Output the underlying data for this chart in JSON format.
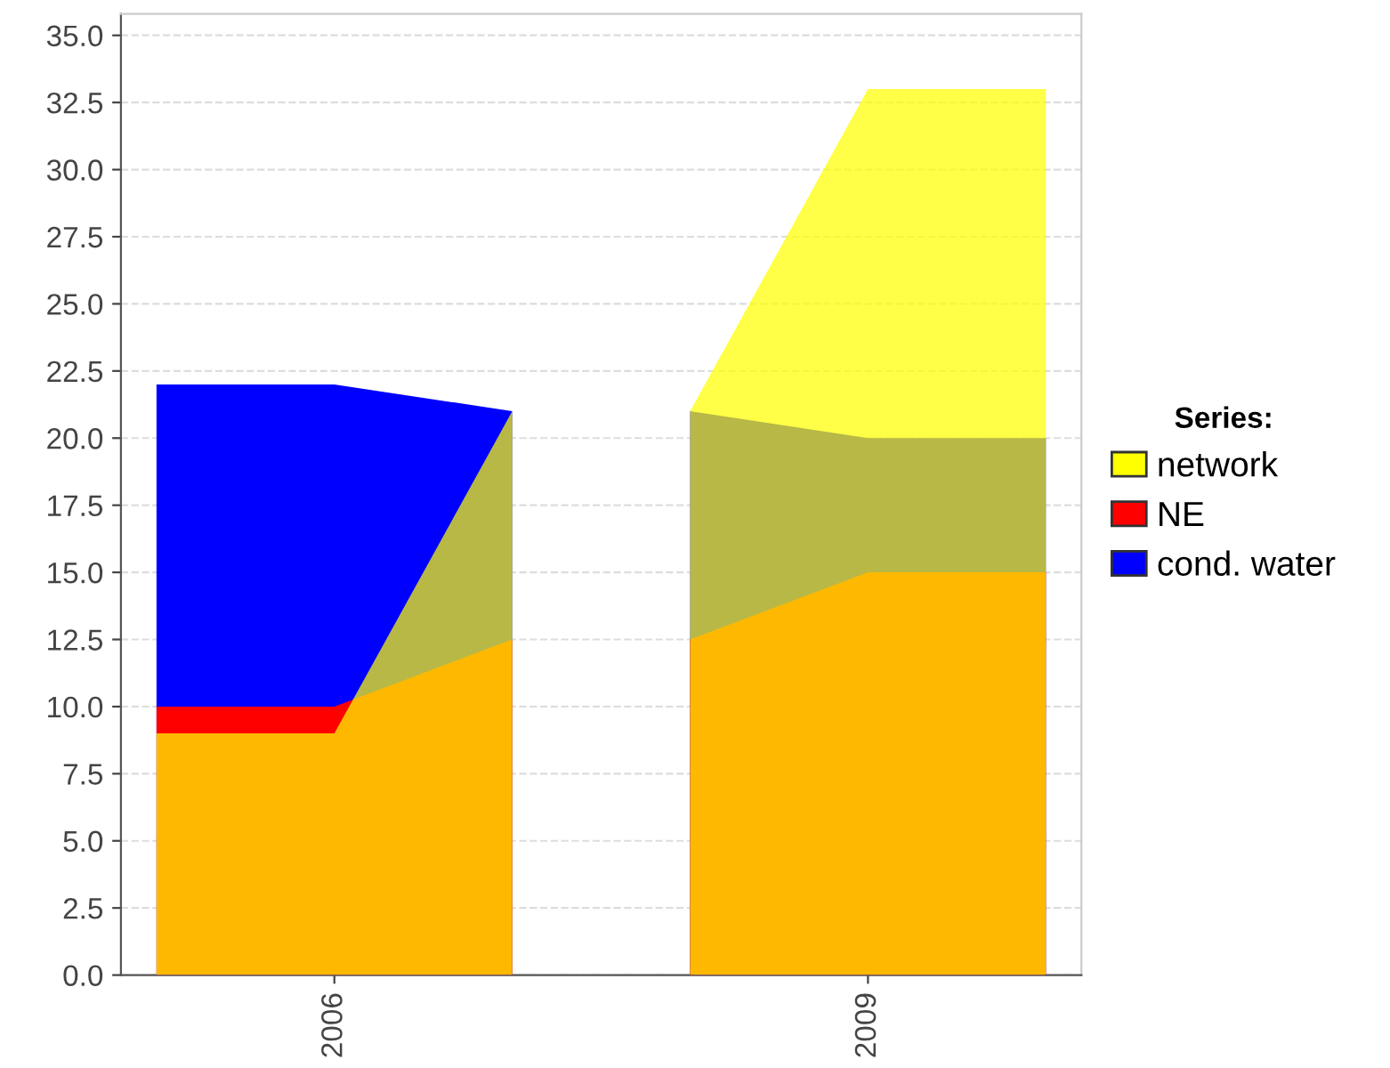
{
  "chart_data": {
    "type": "area",
    "x": [
      2005,
      2006,
      2007,
      2007.5,
      2008,
      2009,
      2010
    ],
    "series": [
      {
        "name": "network",
        "color": "#ffff00",
        "values": [
          9,
          9,
          21,
          null,
          21,
          33,
          33
        ]
      },
      {
        "name": "NE",
        "color": "#ff0000",
        "values": [
          10,
          10,
          12.5,
          null,
          12.5,
          15,
          15
        ]
      },
      {
        "name": "cond. water",
        "color": "#0000ff",
        "values": [
          22,
          22,
          21,
          null,
          21,
          20,
          20
        ]
      }
    ],
    "legend_title": "Series:",
    "legend": "right",
    "grid": "y",
    "xlim": [
      2004.8,
      2010.2
    ],
    "xticks": [
      2006,
      2009
    ],
    "ylim": [
      0,
      35.8
    ],
    "yticks": [
      {
        "value": 0,
        "label": "0.0"
      },
      {
        "value": 2.5,
        "label": "2.5"
      },
      {
        "value": 5,
        "label": "5.0"
      },
      {
        "value": 7.5,
        "label": "7.5"
      },
      {
        "value": 10,
        "label": "10.0"
      },
      {
        "value": 12.5,
        "label": "12.5"
      },
      {
        "value": 15,
        "label": "15.0"
      },
      {
        "value": 17.5,
        "label": "17.5"
      },
      {
        "value": 20,
        "label": "20.0"
      },
      {
        "value": 22.5,
        "label": "22.5"
      },
      {
        "value": 25,
        "label": "25.0"
      },
      {
        "value": 27.5,
        "label": "27.5"
      },
      {
        "value": 30,
        "label": "30.0"
      },
      {
        "value": 32.5,
        "label": "32.5"
      },
      {
        "value": 35,
        "label": "35.0"
      }
    ]
  }
}
